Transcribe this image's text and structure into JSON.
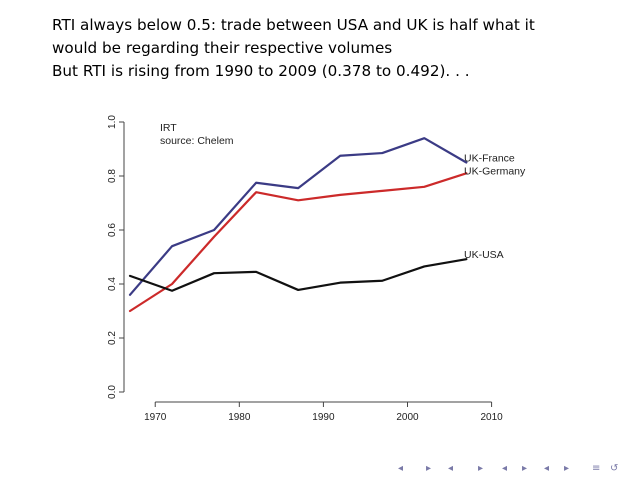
{
  "slide": {
    "lines": [
      "RTI always below 0.5: trade between USA and UK is half what it",
      "would be regarding their respective volumes",
      "But RTI is rising from 1990 to 2009 (0.378 to 0.492). . ."
    ]
  },
  "chart_data": {
    "type": "line",
    "notes": [
      "IRT",
      "source: Chelem"
    ],
    "xlim": [
      1967,
      2011
    ],
    "ylim": [
      0,
      1
    ],
    "xticks": [
      1970,
      1980,
      1990,
      2000,
      2010
    ],
    "yticks": [
      "0.0",
      "0.2",
      "0.4",
      "0.6",
      "0.8",
      "1.0"
    ],
    "x": [
      1967,
      1972,
      1977,
      1982,
      1987,
      1992,
      1997,
      2002,
      2007
    ],
    "series": [
      {
        "name": "UK-France",
        "color": "#3b3b85",
        "values": [
          0.36,
          0.54,
          0.6,
          0.775,
          0.755,
          0.875,
          0.885,
          0.94,
          0.85
        ]
      },
      {
        "name": "UK-Germany",
        "color": "#cc2a2a",
        "values": [
          0.3,
          0.4,
          0.575,
          0.74,
          0.71,
          0.73,
          0.745,
          0.76,
          0.81
        ]
      },
      {
        "name": "UK-USA",
        "color": "#111111",
        "values": [
          0.43,
          0.375,
          0.44,
          0.445,
          0.378,
          0.405,
          0.412,
          0.465,
          0.492
        ]
      }
    ]
  },
  "nav": {
    "color": "#7a7aa8",
    "glyphs": [
      "◂",
      "▸",
      "◂",
      "▸",
      "◂",
      "▸",
      "◂",
      "▸",
      "≡",
      "↺"
    ]
  }
}
